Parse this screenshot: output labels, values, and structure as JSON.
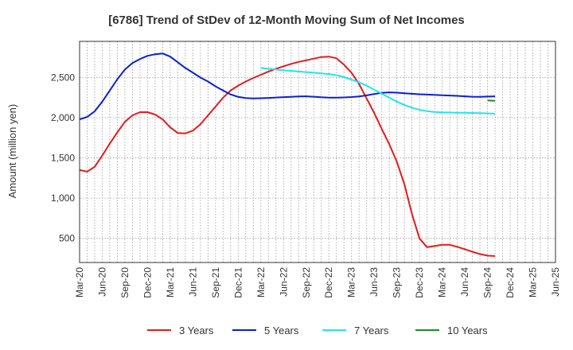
{
  "chart_data": {
    "type": "line",
    "title": "[6786]  Trend of StDev of 12-Month Moving Sum of Net Incomes",
    "ylabel": "Amount (million yen)",
    "xlabel": "",
    "ylim": [
      200,
      2950
    ],
    "yticks": [
      500,
      1000,
      1500,
      2000,
      2500
    ],
    "ytick_labels": [
      "500",
      "1,000",
      "1,500",
      "2,000",
      "2,500"
    ],
    "xtick_labels": [
      "Mar-20",
      "Jun-20",
      "Sep-20",
      "Dec-20",
      "Mar-21",
      "Jun-21",
      "Sep-21",
      "Dec-21",
      "Mar-22",
      "Jun-22",
      "Sep-22",
      "Dec-22",
      "Mar-23",
      "Jun-23",
      "Sep-23",
      "Dec-23",
      "Mar-24",
      "Jun-24",
      "Sep-24",
      "Dec-24",
      "Mar-25",
      "Jun-25"
    ],
    "grid": true,
    "legend_position": "bottom",
    "series": [
      {
        "name": "3 Years",
        "color": "#e41a1c",
        "start_index": 0,
        "values": [
          1350,
          1330,
          1390,
          1530,
          1680,
          1820,
          1950,
          2030,
          2070,
          2070,
          2040,
          1980,
          1880,
          1810,
          1805,
          1840,
          1920,
          2030,
          2140,
          2250,
          2340,
          2400,
          2450,
          2495,
          2535,
          2575,
          2610,
          2640,
          2670,
          2695,
          2715,
          2735,
          2755,
          2760,
          2740,
          2660,
          2560,
          2420,
          2240,
          2060,
          1860,
          1670,
          1450,
          1170,
          800,
          500,
          390,
          405,
          420,
          420,
          395,
          365,
          335,
          305,
          285,
          280
        ]
      },
      {
        "name": "5 Years",
        "color": "#0a1fd6",
        "start_index": 0,
        "values": [
          1980,
          2010,
          2080,
          2200,
          2340,
          2480,
          2600,
          2680,
          2730,
          2770,
          2790,
          2800,
          2760,
          2690,
          2620,
          2560,
          2500,
          2450,
          2390,
          2340,
          2290,
          2260,
          2245,
          2240,
          2243,
          2247,
          2252,
          2257,
          2261,
          2265,
          2266,
          2262,
          2255,
          2250,
          2250,
          2253,
          2258,
          2265,
          2278,
          2295,
          2310,
          2316,
          2312,
          2305,
          2298,
          2292,
          2288,
          2284,
          2280,
          2276,
          2272,
          2266,
          2262,
          2261,
          2263,
          2266
        ]
      },
      {
        "name": "7 Years",
        "color": "#1fe6f0",
        "start_index": 24,
        "values": [
          2620,
          2610,
          2600,
          2592,
          2583,
          2575,
          2568,
          2560,
          2552,
          2543,
          2530,
          2505,
          2475,
          2440,
          2400,
          2350,
          2300,
          2250,
          2200,
          2160,
          2125,
          2098,
          2082,
          2072,
          2067,
          2065,
          2063,
          2062,
          2060,
          2058,
          2055,
          2050
        ]
      },
      {
        "name": "10 Years",
        "color": "#228b22",
        "start_index": 54,
        "values": [
          2215,
          2210
        ]
      }
    ]
  }
}
